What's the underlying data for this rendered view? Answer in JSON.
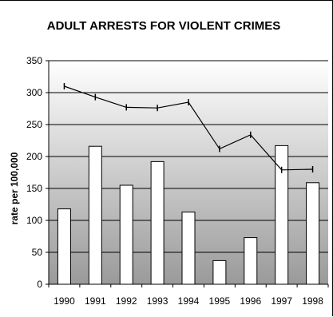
{
  "chart_data": {
    "type": "bar+line",
    "title": "ADULT ARRESTS FOR VIOLENT CRIMES",
    "xlabel": "",
    "ylabel": "rate per 100,000",
    "categories": [
      "1990",
      "1991",
      "1992",
      "1993",
      "1994",
      "1995",
      "1996",
      "1997",
      "1998"
    ],
    "ylim": [
      0,
      350
    ],
    "yticks": [
      0,
      50,
      100,
      150,
      200,
      250,
      300,
      350
    ],
    "grid": true,
    "legend": "none",
    "series": [
      {
        "type": "bar",
        "values": [
          118,
          216,
          155,
          192,
          113,
          37,
          73,
          217,
          159
        ]
      },
      {
        "type": "line",
        "values": [
          310,
          293,
          277,
          276,
          285,
          212,
          234,
          179,
          180
        ]
      }
    ],
    "colors": {
      "bar_fill": "#ffffff",
      "bar_stroke": "#000000",
      "line": "#000000",
      "plot_gradient_top": "#ffffff",
      "plot_gradient_bottom": "#9a9a9a"
    }
  }
}
